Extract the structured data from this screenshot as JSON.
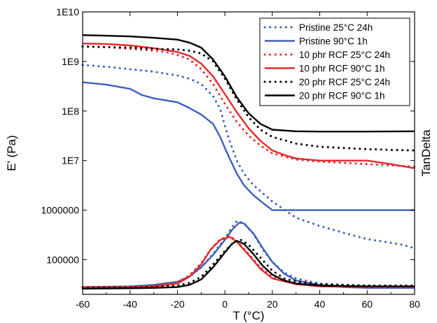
{
  "chart_data": {
    "type": "line",
    "xlabel": "T (°C)",
    "ylabel": "E' (Pa)",
    "y2label": "TanDelta",
    "xlim": [
      -60,
      80
    ],
    "ylim": [
      20000,
      10000000000
    ],
    "yscale": "log",
    "xticks": [
      -60,
      -40,
      -20,
      0,
      20,
      40,
      60,
      80
    ],
    "xtick_labels": [
      "-60",
      "-40",
      "-20",
      "0",
      "20",
      "40",
      "60",
      "80"
    ],
    "yticks": [
      100000,
      1000000,
      10000000,
      100000000,
      1000000000,
      10000000000
    ],
    "ytick_labels": [
      "100000",
      "1000000",
      "1E7",
      "1E8",
      "1E9",
      "1E10"
    ],
    "grid": false,
    "legend": "top-right",
    "series": [
      {
        "name": "Pristine 25°C 24h",
        "color": "#3b5fbf",
        "style": "dotted",
        "group": "E'",
        "points": [
          [
            -60,
            850000000
          ],
          [
            -50,
            780000000
          ],
          [
            -40,
            700000000
          ],
          [
            -30,
            620000000
          ],
          [
            -20,
            520000000
          ],
          [
            -15,
            450000000
          ],
          [
            -10,
            350000000
          ],
          [
            -5,
            200000000
          ],
          [
            -2,
            110000000
          ],
          [
            0,
            50000000
          ],
          [
            2,
            25000000
          ],
          [
            5,
            10000000
          ],
          [
            8,
            5500000
          ],
          [
            12,
            3200000
          ],
          [
            20,
            1500000
          ],
          [
            30,
            700000
          ],
          [
            40,
            480000
          ],
          [
            50,
            350000
          ],
          [
            60,
            260000
          ],
          [
            70,
            220000
          ],
          [
            75,
            200000
          ],
          [
            80,
            170000
          ]
        ]
      },
      {
        "name": "Pristine 90°C 1h",
        "color": "#3b5fbf",
        "style": "solid",
        "group": "E'",
        "points": [
          [
            -60,
            380000000
          ],
          [
            -50,
            340000000
          ],
          [
            -40,
            280000000
          ],
          [
            -35,
            210000000
          ],
          [
            -30,
            180000000
          ],
          [
            -20,
            150000000
          ],
          [
            -15,
            115000000
          ],
          [
            -10,
            85000000
          ],
          [
            -5,
            55000000
          ],
          [
            -2,
            30000000
          ],
          [
            0,
            18000000
          ],
          [
            2,
            11000000
          ],
          [
            5,
            5500000
          ],
          [
            8,
            3200000
          ],
          [
            12,
            2000000
          ],
          [
            16,
            1400000
          ],
          [
            20,
            1000000
          ],
          [
            30,
            1000000
          ],
          [
            40,
            1000000
          ],
          [
            60,
            1000000
          ],
          [
            80,
            1000000
          ]
        ]
      },
      {
        "name": "10 phr RCF 25°C 24h",
        "color": "#e8262b",
        "style": "dotted",
        "group": "E'",
        "points": [
          [
            -60,
            2000000000
          ],
          [
            -50,
            1950000000
          ],
          [
            -40,
            1800000000
          ],
          [
            -30,
            1650000000
          ],
          [
            -25,
            1550000000
          ],
          [
            -20,
            1350000000
          ],
          [
            -15,
            1100000000
          ],
          [
            -10,
            700000000
          ],
          [
            -5,
            350000000
          ],
          [
            0,
            140000000
          ],
          [
            5,
            60000000
          ],
          [
            10,
            32000000
          ],
          [
            15,
            20000000
          ],
          [
            20,
            14000000
          ],
          [
            30,
            10500000
          ],
          [
            40,
            9500000
          ],
          [
            50,
            9000000
          ],
          [
            60,
            8500000
          ],
          [
            70,
            8000000
          ],
          [
            80,
            7500000
          ]
        ]
      },
      {
        "name": "10 phr RCF 90°C 1h",
        "color": "#e8262b",
        "style": "solid",
        "group": "E'",
        "points": [
          [
            -60,
            2300000000
          ],
          [
            -50,
            2250000000
          ],
          [
            -40,
            2100000000
          ],
          [
            -30,
            1850000000
          ],
          [
            -25,
            1700000000
          ],
          [
            -20,
            1550000000
          ],
          [
            -15,
            1300000000
          ],
          [
            -10,
            900000000
          ],
          [
            -5,
            500000000
          ],
          [
            0,
            220000000
          ],
          [
            5,
            95000000
          ],
          [
            10,
            45000000
          ],
          [
            15,
            25000000
          ],
          [
            20,
            16000000
          ],
          [
            25,
            13000000
          ],
          [
            30,
            11000000
          ],
          [
            40,
            10000000
          ],
          [
            50,
            10000000
          ],
          [
            60,
            10000000
          ],
          [
            70,
            8500000
          ],
          [
            80,
            7000000
          ]
        ]
      },
      {
        "name": "20 phr RCF 25°C 24h",
        "color": "#000000",
        "style": "dotted",
        "group": "E'",
        "points": [
          [
            -60,
            2000000000
          ],
          [
            -50,
            1950000000
          ],
          [
            -40,
            1900000000
          ],
          [
            -30,
            1800000000
          ],
          [
            -20,
            1750000000
          ],
          [
            -15,
            1650000000
          ],
          [
            -10,
            1450000000
          ],
          [
            -5,
            1000000000
          ],
          [
            0,
            450000000
          ],
          [
            5,
            170000000
          ],
          [
            10,
            75000000
          ],
          [
            15,
            42000000
          ],
          [
            20,
            30000000
          ],
          [
            30,
            22000000
          ],
          [
            40,
            19000000
          ],
          [
            50,
            18000000
          ],
          [
            60,
            17000000
          ],
          [
            70,
            16500000
          ],
          [
            80,
            16000000
          ]
        ]
      },
      {
        "name": "20 phr RCF 90°C 1h",
        "color": "#000000",
        "style": "solid",
        "group": "E'",
        "points": [
          [
            -60,
            3400000000
          ],
          [
            -50,
            3300000000
          ],
          [
            -40,
            3200000000
          ],
          [
            -30,
            3000000000
          ],
          [
            -20,
            2750000000
          ],
          [
            -15,
            2400000000
          ],
          [
            -10,
            1900000000
          ],
          [
            -5,
            1100000000
          ],
          [
            0,
            500000000
          ],
          [
            5,
            190000000
          ],
          [
            10,
            90000000
          ],
          [
            15,
            55000000
          ],
          [
            20,
            42000000
          ],
          [
            30,
            39000000
          ],
          [
            40,
            38500000
          ],
          [
            60,
            38500000
          ],
          [
            80,
            39000000
          ]
        ]
      },
      {
        "name": "Pristine 25°C 24h",
        "color": "#3b5fbf",
        "style": "dotted",
        "group": "TanDelta",
        "points": [
          [
            -60,
            28000
          ],
          [
            -40,
            28500
          ],
          [
            -30,
            30000
          ],
          [
            -20,
            35000
          ],
          [
            -15,
            45000
          ],
          [
            -10,
            70000
          ],
          [
            -5,
            130000
          ],
          [
            0,
            270000
          ],
          [
            3,
            450000
          ],
          [
            5,
            600000
          ],
          [
            8,
            550000
          ],
          [
            12,
            330000
          ],
          [
            16,
            160000
          ],
          [
            20,
            90000
          ],
          [
            25,
            55000
          ],
          [
            30,
            42000
          ],
          [
            40,
            33000
          ],
          [
            50,
            31000
          ],
          [
            60,
            30000
          ],
          [
            70,
            29000
          ],
          [
            80,
            29000
          ]
        ]
      },
      {
        "name": "Pristine 90°C 1h",
        "color": "#3b5fbf",
        "style": "solid",
        "group": "TanDelta",
        "points": [
          [
            -60,
            28000
          ],
          [
            -40,
            29000
          ],
          [
            -30,
            31000
          ],
          [
            -20,
            36000
          ],
          [
            -15,
            46000
          ],
          [
            -10,
            70000
          ],
          [
            -5,
            125000
          ],
          [
            0,
            250000
          ],
          [
            3,
            400000
          ],
          [
            6,
            560000
          ],
          [
            8,
            540000
          ],
          [
            12,
            340000
          ],
          [
            16,
            170000
          ],
          [
            20,
            90000
          ],
          [
            25,
            52000
          ],
          [
            30,
            38000
          ],
          [
            40,
            31000
          ],
          [
            50,
            28000
          ],
          [
            60,
            27000
          ],
          [
            70,
            27000
          ],
          [
            80,
            27000
          ]
        ]
      },
      {
        "name": "10 phr RCF 25°C 24h",
        "color": "#e8262b",
        "style": "dotted",
        "group": "TanDelta",
        "points": [
          [
            -60,
            28000
          ],
          [
            -40,
            28500
          ],
          [
            -30,
            30000
          ],
          [
            -20,
            35000
          ],
          [
            -15,
            48000
          ],
          [
            -10,
            85000
          ],
          [
            -6,
            160000
          ],
          [
            -2,
            260000
          ],
          [
            2,
            300000
          ],
          [
            5,
            240000
          ],
          [
            10,
            130000
          ],
          [
            15,
            70000
          ],
          [
            20,
            45000
          ],
          [
            30,
            33000
          ],
          [
            40,
            30000
          ],
          [
            60,
            29000
          ],
          [
            80,
            29000
          ]
        ]
      },
      {
        "name": "10 phr RCF 90°C 1h",
        "color": "#e8262b",
        "style": "solid",
        "group": "TanDelta",
        "points": [
          [
            -60,
            28000
          ],
          [
            -40,
            28000
          ],
          [
            -30,
            29000
          ],
          [
            -20,
            33000
          ],
          [
            -15,
            45000
          ],
          [
            -10,
            80000
          ],
          [
            -6,
            160000
          ],
          [
            -2,
            250000
          ],
          [
            2,
            290000
          ],
          [
            5,
            230000
          ],
          [
            10,
            125000
          ],
          [
            15,
            65000
          ],
          [
            20,
            42000
          ],
          [
            30,
            32000
          ],
          [
            40,
            29000
          ],
          [
            60,
            28000
          ],
          [
            80,
            28000
          ]
        ]
      },
      {
        "name": "20 phr RCF 25°C 24h",
        "color": "#000000",
        "style": "dotted",
        "group": "TanDelta",
        "points": [
          [
            -60,
            27000
          ],
          [
            -40,
            27500
          ],
          [
            -30,
            28000
          ],
          [
            -20,
            30000
          ],
          [
            -15,
            34000
          ],
          [
            -10,
            45000
          ],
          [
            -5,
            80000
          ],
          [
            0,
            150000
          ],
          [
            4,
            230000
          ],
          [
            7,
            250000
          ],
          [
            10,
            200000
          ],
          [
            15,
            110000
          ],
          [
            20,
            60000
          ],
          [
            25,
            42000
          ],
          [
            30,
            36000
          ],
          [
            40,
            32000
          ],
          [
            60,
            30000
          ],
          [
            80,
            30000
          ]
        ]
      },
      {
        "name": "20 phr RCF 90°C 1h",
        "color": "#000000",
        "style": "solid",
        "group": "TanDelta",
        "points": [
          [
            -60,
            26000
          ],
          [
            -40,
            26500
          ],
          [
            -30,
            27000
          ],
          [
            -20,
            28000
          ],
          [
            -15,
            31000
          ],
          [
            -10,
            40000
          ],
          [
            -5,
            70000
          ],
          [
            0,
            140000
          ],
          [
            3,
            210000
          ],
          [
            5,
            240000
          ],
          [
            8,
            210000
          ],
          [
            12,
            130000
          ],
          [
            16,
            75000
          ],
          [
            20,
            50000
          ],
          [
            25,
            38000
          ],
          [
            30,
            33000
          ],
          [
            40,
            30000
          ],
          [
            60,
            29000
          ],
          [
            80,
            29000
          ]
        ]
      }
    ]
  }
}
